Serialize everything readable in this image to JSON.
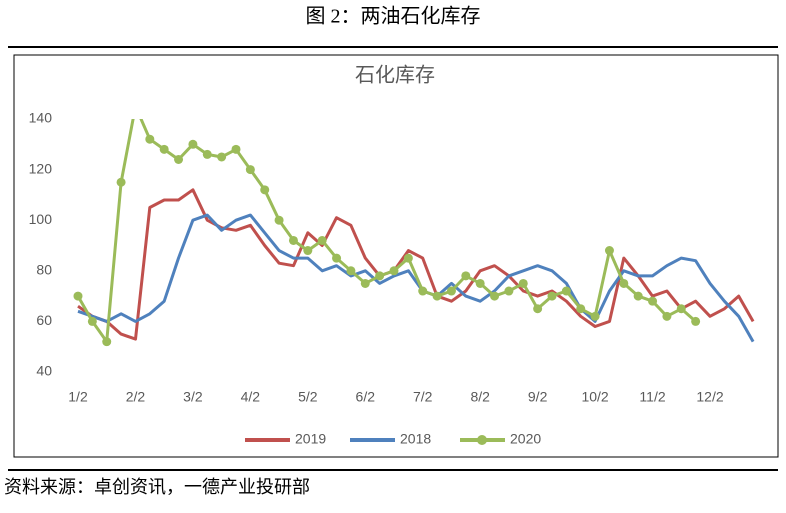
{
  "figure_title": "图 2：两油石化库存",
  "source": "资料来源：卓创资讯，一德产业投研部",
  "chart_data": {
    "type": "line",
    "title": "石化库存",
    "categories": [
      "1/2",
      null,
      null,
      null,
      "2/2",
      null,
      null,
      null,
      "3/2",
      null,
      null,
      null,
      "4/2",
      null,
      null,
      null,
      "5/2",
      null,
      null,
      null,
      "6/2",
      null,
      null,
      null,
      "7/2",
      null,
      null,
      null,
      "8/2",
      null,
      null,
      null,
      "9/2",
      null,
      null,
      null,
      "10/2",
      null,
      null,
      null,
      "11/2",
      null,
      null,
      null,
      "12/2",
      null,
      null,
      null
    ],
    "series": [
      {
        "name": "2019",
        "color": "#c0504d",
        "markers": false,
        "values": [
          66,
          62,
          60,
          55,
          53,
          105,
          108,
          108,
          112,
          100,
          97,
          96,
          98,
          90,
          83,
          82,
          95,
          90,
          101,
          98,
          85,
          78,
          80,
          88,
          85,
          70,
          68,
          72,
          80,
          82,
          78,
          72,
          70,
          72,
          68,
          62,
          58,
          60,
          85,
          78,
          70,
          72,
          65,
          68,
          62,
          65,
          70,
          60
        ]
      },
      {
        "name": "2018",
        "color": "#4f81bd",
        "markers": false,
        "values": [
          64,
          62,
          60,
          63,
          60,
          63,
          68,
          85,
          100,
          102,
          96,
          100,
          102,
          95,
          88,
          85,
          85,
          80,
          82,
          78,
          80,
          75,
          78,
          80,
          72,
          70,
          75,
          70,
          68,
          72,
          78,
          80,
          82,
          80,
          75,
          65,
          60,
          72,
          80,
          78,
          78,
          82,
          85,
          84,
          75,
          68,
          62,
          52
        ]
      },
      {
        "name": "2020",
        "color": "#9bbb59",
        "markers": true,
        "values": [
          70,
          60,
          52,
          115,
          145,
          132,
          128,
          124,
          130,
          126,
          125,
          128,
          120,
          112,
          100,
          92,
          88,
          92,
          85,
          80,
          75,
          78,
          80,
          85,
          72,
          70,
          72,
          78,
          75,
          70,
          72,
          75,
          65,
          70,
          72,
          65,
          62,
          88,
          75,
          70,
          68,
          62,
          65,
          60,
          null,
          null,
          null,
          null
        ]
      }
    ],
    "ylim": [
      40,
      140
    ],
    "yticks": [
      40,
      60,
      80,
      100,
      120,
      140
    ],
    "grid": false,
    "legend": "bottom"
  }
}
